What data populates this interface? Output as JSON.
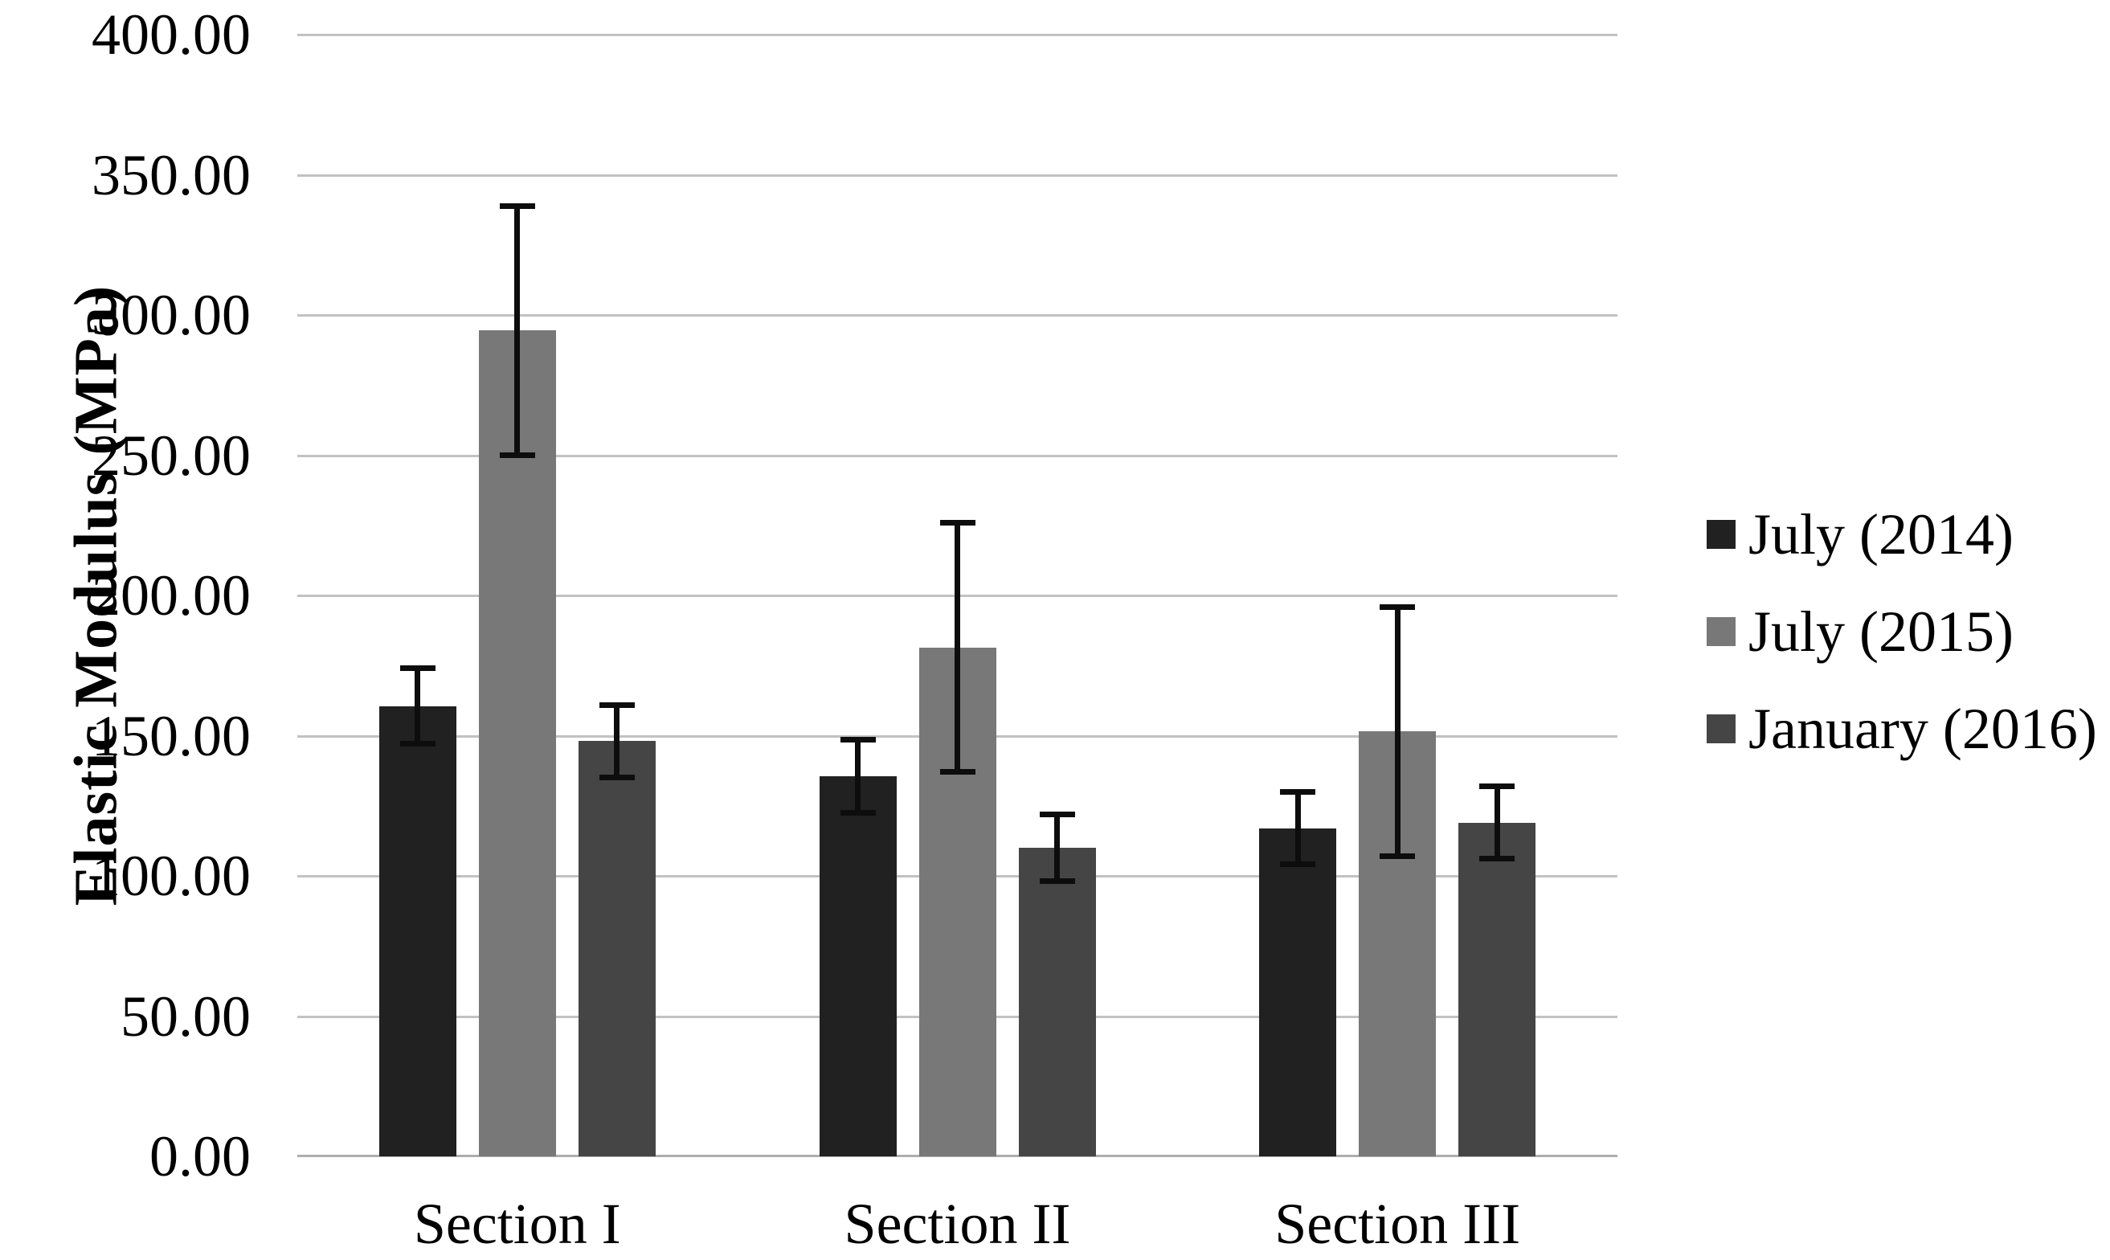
{
  "chart_data": {
    "type": "bar",
    "title": "",
    "xlabel": "",
    "ylabel": "Elastic Modulus (MPa)",
    "ylim": [
      0,
      400
    ],
    "ytick_step": 50,
    "ytick_decimals": 2,
    "grid": "horizontal",
    "legend_position": "right",
    "error_bars": true,
    "categories": [
      "Section I",
      "Section II",
      "Section III"
    ],
    "series": [
      {
        "name": "July (2014)",
        "color": "#212121",
        "values": [
          160.5,
          135.5,
          117.0
        ],
        "errors": [
          13.0,
          12.5,
          12.5
        ]
      },
      {
        "name": "July (2015)",
        "color": "#787878",
        "values": [
          294.5,
          181.5,
          151.5
        ],
        "errors": [
          44.0,
          44.0,
          44.0
        ]
      },
      {
        "name": "January (2016)",
        "color": "#454545",
        "values": [
          148.0,
          110.0,
          119.0
        ],
        "errors": [
          12.5,
          11.5,
          12.5
        ]
      }
    ],
    "colors": {
      "gridline": "#c2c2c2",
      "axis_line": "#aeaeae",
      "error_bar": "#0d0d0d",
      "text": "#000000",
      "background": "#ffffff"
    }
  }
}
